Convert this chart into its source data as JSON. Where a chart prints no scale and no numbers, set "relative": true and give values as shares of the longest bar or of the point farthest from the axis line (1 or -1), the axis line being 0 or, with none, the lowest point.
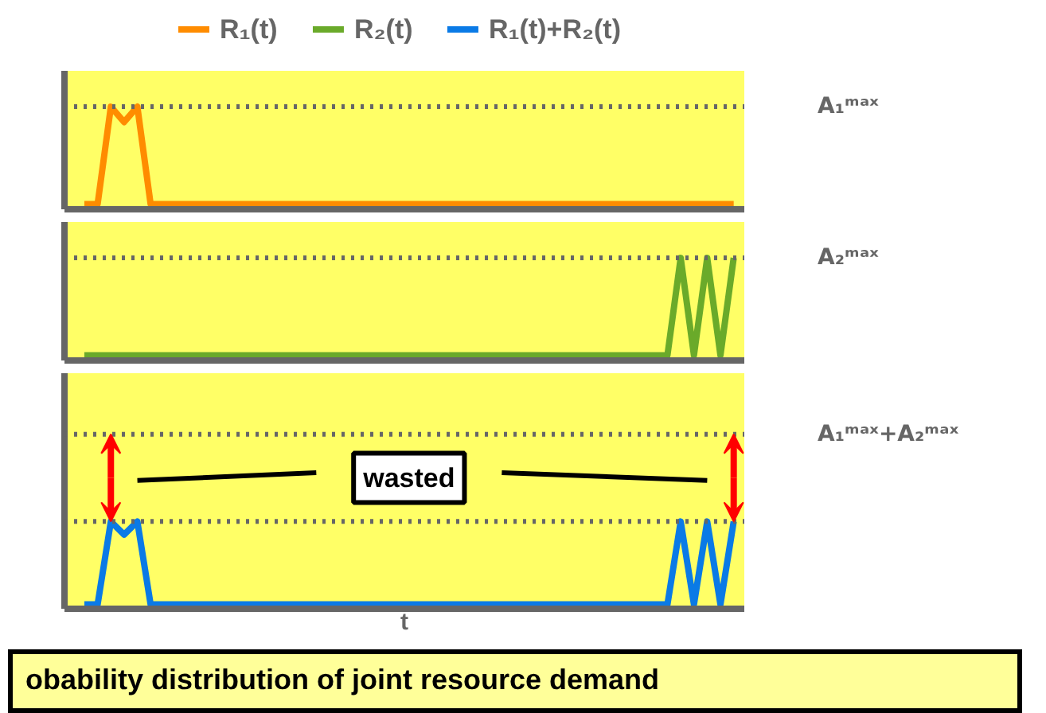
{
  "chart_data": [
    {
      "type": "line",
      "relative": true,
      "legend": "top",
      "categories": [
        null,
        null,
        null,
        null,
        null,
        null,
        null,
        null,
        null,
        null,
        null,
        null,
        null,
        null,
        null,
        null,
        null,
        null,
        null,
        null,
        null,
        null,
        null,
        null,
        null,
        null,
        null,
        null,
        null,
        null,
        null,
        null,
        null,
        null,
        null,
        null,
        null,
        null,
        null,
        null,
        null,
        null,
        null,
        null,
        null,
        null,
        null,
        null,
        null,
        null
      ],
      "series": [
        {
          "name": "R₁(t)",
          "color": "#ff8c00",
          "values": [
            0.05,
            0.05,
            1,
            0.85,
            1,
            0.05,
            0.05,
            0.05,
            0.05,
            0.05,
            0.05,
            0.05,
            0.05,
            0.05,
            0.05,
            0.05,
            0.05,
            0.05,
            0.05,
            0.05,
            0.05,
            0.05,
            0.05,
            0.05,
            0.05,
            0.05,
            0.05,
            0.05,
            0.05,
            0.05,
            0.05,
            0.05,
            0.05,
            0.05,
            0.05,
            0.05,
            0.05,
            0.05,
            0.05,
            0.05,
            0.05,
            0.05,
            0.05,
            0.05,
            0.05,
            0.05,
            0.05,
            0.05,
            0.05,
            0.05
          ]
        }
      ],
      "ref_lines": [
        {
          "axis": "y",
          "value": 1,
          "label": "A₁ᵐᵃˣ",
          "color": "#666666",
          "line_style": "dotted"
        }
      ]
    },
    {
      "type": "line",
      "relative": true,
      "legend": "top",
      "categories": [
        null,
        null,
        null,
        null,
        null,
        null,
        null,
        null,
        null,
        null,
        null,
        null,
        null,
        null,
        null,
        null,
        null,
        null,
        null,
        null,
        null,
        null,
        null,
        null,
        null,
        null,
        null,
        null,
        null,
        null,
        null,
        null,
        null,
        null,
        null,
        null,
        null,
        null,
        null,
        null,
        null,
        null,
        null,
        null,
        null,
        null,
        null,
        null,
        null,
        null
      ],
      "series": [
        {
          "name": "R₂(t)",
          "color": "#6aaa2a",
          "values": [
            0.05,
            0.05,
            0.05,
            0.05,
            0.05,
            0.05,
            0.05,
            0.05,
            0.05,
            0.05,
            0.05,
            0.05,
            0.05,
            0.05,
            0.05,
            0.05,
            0.05,
            0.05,
            0.05,
            0.05,
            0.05,
            0.05,
            0.05,
            0.05,
            0.05,
            0.05,
            0.05,
            0.05,
            0.05,
            0.05,
            0.05,
            0.05,
            0.05,
            0.05,
            0.05,
            0.05,
            0.05,
            0.05,
            0.05,
            0.05,
            0.05,
            0.05,
            0.05,
            0.05,
            0.05,
            1,
            0.05,
            1,
            0.05,
            1
          ]
        }
      ],
      "ref_lines": [
        {
          "axis": "y",
          "value": 1,
          "label": "A₂ᵐᵃˣ",
          "color": "#666666",
          "line_style": "dotted"
        }
      ]
    },
    {
      "type": "line",
      "relative": true,
      "legend": "top",
      "xlabel": "t",
      "categories": [
        null,
        null,
        null,
        null,
        null,
        null,
        null,
        null,
        null,
        null,
        null,
        null,
        null,
        null,
        null,
        null,
        null,
        null,
        null,
        null,
        null,
        null,
        null,
        null,
        null,
        null,
        null,
        null,
        null,
        null,
        null,
        null,
        null,
        null,
        null,
        null,
        null,
        null,
        null,
        null,
        null,
        null,
        null,
        null,
        null,
        null,
        null,
        null,
        null,
        null
      ],
      "series": [
        {
          "name": "R₁(t)+R₂(t)",
          "color": "#0a7ae6",
          "values": [
            0.05,
            0.05,
            1,
            0.85,
            1,
            0.05,
            0.05,
            0.05,
            0.05,
            0.05,
            0.05,
            0.05,
            0.05,
            0.05,
            0.05,
            0.05,
            0.05,
            0.05,
            0.05,
            0.05,
            0.05,
            0.05,
            0.05,
            0.05,
            0.05,
            0.05,
            0.05,
            0.05,
            0.05,
            0.05,
            0.05,
            0.05,
            0.05,
            0.05,
            0.05,
            0.05,
            0.05,
            0.05,
            0.05,
            0.05,
            0.05,
            0.05,
            0.05,
            0.05,
            0.05,
            1,
            0.05,
            1,
            0.05,
            1
          ]
        }
      ],
      "ref_lines": [
        {
          "axis": "y",
          "value": 2,
          "label": "A₁ᵐᵃˣ+A₂ᵐᵃˣ",
          "color": "#666666",
          "line_style": "dotted"
        },
        {
          "axis": "y",
          "value": 1,
          "label": null,
          "color": "#666666",
          "line_style": "dotted"
        }
      ],
      "annotations": [
        "wasted",
        "obability distribution of joint resource demand"
      ]
    }
  ]
}
